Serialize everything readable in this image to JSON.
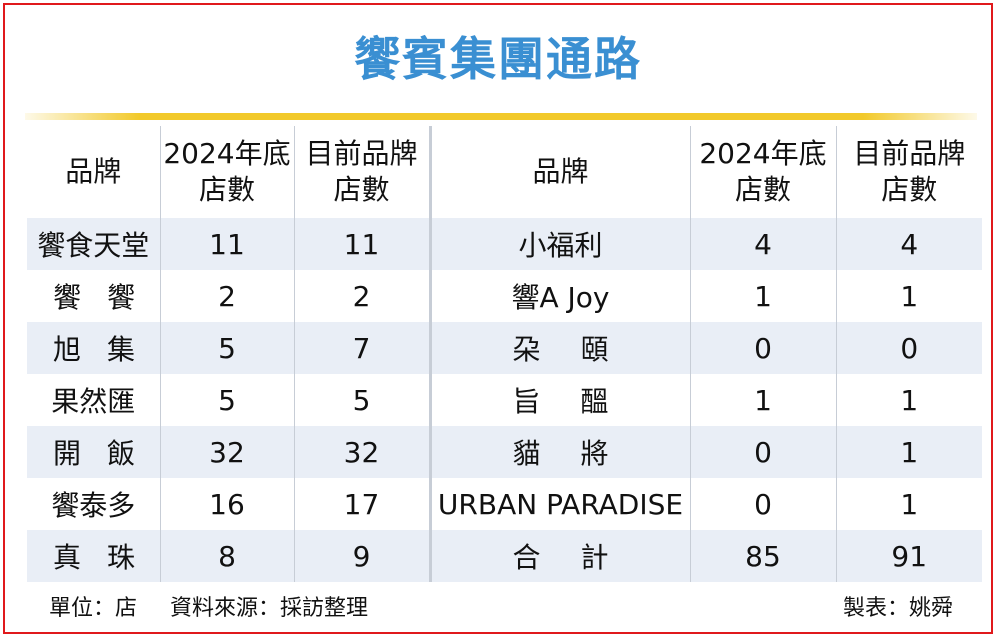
{
  "title": "饗賓集團通路",
  "colors": {
    "title": "#3a8fd2",
    "frame": "#e0191c",
    "rule": "#f2c92a",
    "row_band": "#e9eef6"
  },
  "headers": {
    "brand": "品牌",
    "end2024_line1": "2024年底",
    "end2024_line2": "店數",
    "current_line1": "目前品牌",
    "current_line2": "店數"
  },
  "footer": {
    "unit": "單位：店",
    "source": "資料來源：採訪整理",
    "credit": "製表：姚舜"
  },
  "chart_data": {
    "type": "table",
    "title": "饗賓集團通路",
    "columns": [
      "品牌",
      "2024年底店數",
      "目前品牌店數"
    ],
    "left": [
      {
        "brand": "饗食天堂",
        "end2024": "11",
        "current": "11"
      },
      {
        "brand": "饗饗",
        "end2024": "2",
        "current": "2"
      },
      {
        "brand": "旭集",
        "end2024": "5",
        "current": "7"
      },
      {
        "brand": "果然匯",
        "end2024": "5",
        "current": "5"
      },
      {
        "brand": "開飯",
        "end2024": "32",
        "current": "32"
      },
      {
        "brand": "饗泰多",
        "end2024": "16",
        "current": "17"
      },
      {
        "brand": "真珠",
        "end2024": "8",
        "current": "9"
      }
    ],
    "right": [
      {
        "brand": "小福利",
        "end2024": "4",
        "current": "4"
      },
      {
        "brand": "響A Joy",
        "end2024": "1",
        "current": "1"
      },
      {
        "brand": "朶頤",
        "end2024": "0",
        "current": "0"
      },
      {
        "brand": "旨醞",
        "end2024": "1",
        "current": "1"
      },
      {
        "brand": "貓將",
        "end2024": "0",
        "current": "1"
      },
      {
        "brand": "URBAN PARADISE",
        "end2024": "0",
        "current": "1"
      },
      {
        "brand": "合計",
        "end2024": "85",
        "current": "91"
      }
    ]
  }
}
